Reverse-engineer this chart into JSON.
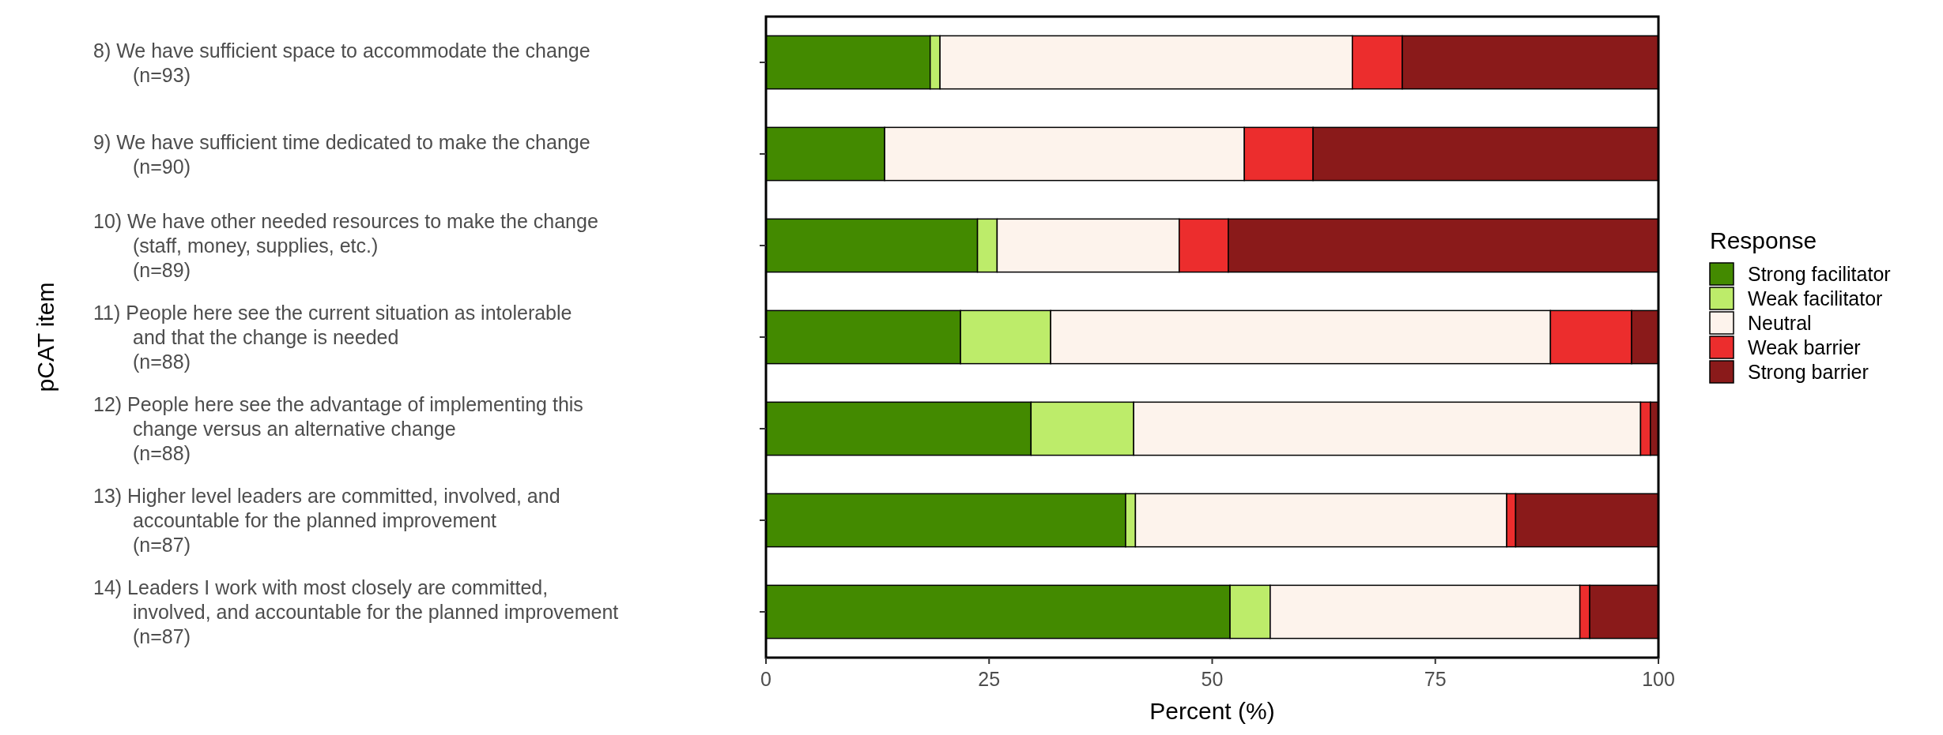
{
  "chart_data": {
    "type": "bar",
    "orientation": "horizontal",
    "stacked": true,
    "xlabel": "Percent (%)",
    "ylabel": "pCAT item",
    "legend_title": "Response",
    "legend": "right",
    "categories": [
      "8)  We have sufficient space to accommodate the change\n(n=93)",
      "9)  We have sufficient time dedicated to make the change\n(n=90)",
      "10)  We have other needed resources to make the change\n(staff, money, supplies, etc.)\n(n=89)",
      "11)  People here see the current situation as intolerable\nand that the change is needed\n(n=88)",
      "12)  People here see the advantage of implementing this\nchange versus an alternative change\n(n=88)",
      "13)  Higher level leaders are committed, involved, and\naccountable for the planned improvement\n(n=87)",
      "14)  Leaders I work with most closely are committed,\ninvolved, and accountable for the planned improvement\n(n=87)"
    ],
    "series": [
      {
        "name": "Strong facilitator",
        "color": "#438a00",
        "values": [
          18.4,
          13.3,
          23.7,
          21.8,
          29.7,
          40.3,
          52.0
        ]
      },
      {
        "name": "Weak facilitator",
        "color": "#bdec6a",
        "values": [
          1.1,
          0,
          2.2,
          10.1,
          11.5,
          1.1,
          4.5
        ]
      },
      {
        "name": "Neutral",
        "color": "#fdf3ec",
        "values": [
          46.2,
          40.3,
          20.4,
          56.0,
          56.8,
          41.6,
          34.7
        ]
      },
      {
        "name": "Weak barrier",
        "color": "#ec2d2d",
        "values": [
          5.6,
          7.7,
          5.5,
          9.1,
          1.1,
          1.0,
          1.1
        ]
      },
      {
        "name": "Strong barrier",
        "color": "#8a1a1a",
        "values": [
          28.7,
          38.7,
          48.2,
          3.0,
          0.9,
          16.0,
          7.7
        ]
      }
    ],
    "xlim": [
      0,
      100
    ],
    "xticks": [
      0,
      25,
      50,
      75,
      100
    ],
    "grid": false
  }
}
